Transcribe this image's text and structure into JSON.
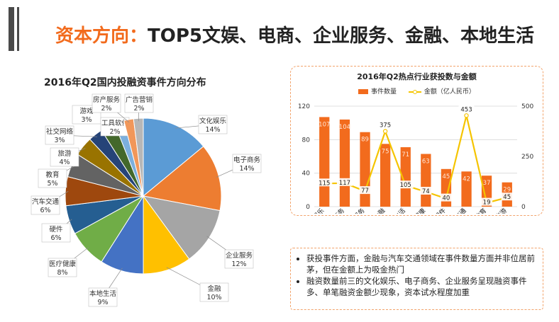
{
  "header": {
    "title_accent": "资本方向：",
    "title_main": "TOP5文娱、电商、企业服务、金融、本地生活"
  },
  "colors": {
    "accent": "#f26b1d",
    "line": "#f5c400",
    "panel_border": "#f2a36b"
  },
  "chart_data": [
    {
      "type": "pie",
      "title": "2016年Q2国内投融资事件方向分布",
      "slices": [
        {
          "label": "文化娱乐",
          "value": 14,
          "display": "14%",
          "color": "#5b9bd5"
        },
        {
          "label": "电子商务",
          "value": 14,
          "display": "14%",
          "color": "#ed7d31"
        },
        {
          "label": "企业服务",
          "value": 12,
          "display": "12%",
          "color": "#a5a5a5"
        },
        {
          "label": "金融",
          "value": 10,
          "display": "10%",
          "color": "#ffc000"
        },
        {
          "label": "本地生活",
          "value": 9,
          "display": "9%",
          "color": "#4472c4"
        },
        {
          "label": "医疗健康",
          "value": 8,
          "display": "8%",
          "color": "#70ad47"
        },
        {
          "label": "硬件",
          "value": 6,
          "display": "6%",
          "color": "#255e91"
        },
        {
          "label": "汽车交通",
          "value": 6,
          "display": "6%",
          "color": "#9e480e"
        },
        {
          "label": "教育",
          "value": 5,
          "display": "5%",
          "color": "#636363"
        },
        {
          "label": "旅游",
          "value": 4,
          "display": "4%",
          "color": "#997300"
        },
        {
          "label": "社交网络",
          "value": 3,
          "display": "3%",
          "color": "#264478"
        },
        {
          "label": "游戏",
          "value": 3,
          "display": "3%",
          "color": "#43682b"
        },
        {
          "label": "工具软件",
          "value": 2,
          "display": "2%",
          "color": "#7cafdd"
        },
        {
          "label": "房产服务",
          "value": 2,
          "display": "2%",
          "color": "#f1975a"
        },
        {
          "label": "广告营销",
          "value": 2,
          "display": "2%",
          "color": "#b7b7b7"
        }
      ]
    },
    {
      "type": "bar",
      "title": "2016年Q2热点行业获投数与金额",
      "categories": [
        "文化娱乐",
        "电子商务",
        "企业服务",
        "金融",
        "本地生活",
        "医疗健康",
        "硬件",
        "汽车交通",
        "教育",
        "旅游"
      ],
      "series": [
        {
          "name": "事件数量",
          "type": "bar",
          "axis": "left",
          "values": [
            107,
            104,
            89,
            75,
            71,
            63,
            45,
            42,
            37,
            29
          ]
        },
        {
          "name": "金额（亿人民币）",
          "type": "line",
          "axis": "right",
          "values": [
            115,
            117,
            77,
            375,
            105,
            74,
            40,
            453,
            19,
            45
          ]
        }
      ],
      "ylim_left": [
        0,
        120
      ],
      "yticks_left": [
        0,
        40,
        80,
        120
      ],
      "ylim_right": [
        0,
        500
      ],
      "yticks_right": [
        0,
        250,
        500
      ]
    }
  ],
  "notes": [
    "获投事件方面，金融与汽车交通领域在事件数量方面并非位居前茅，但在金额上为吸金热门",
    "融资数量前三的文化娱乐、电子商务、企业服务呈现融资事件多、单笔融资金额少现象，资本试水程度加重"
  ]
}
